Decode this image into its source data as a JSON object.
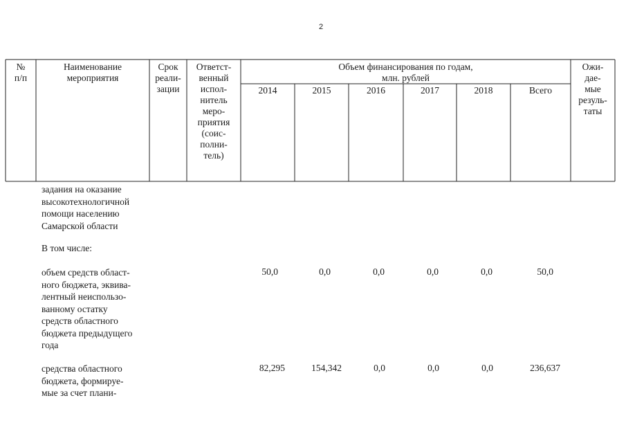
{
  "page_number": "2",
  "header": {
    "col_no": "№\nп/п",
    "col_name": "Наименование\nмероприятия",
    "col_term": "Срок\nреали-\nзации",
    "col_resp": "Ответст-\nвенный\nиспол-\nнитель\nмеро-\nприятия\n(соис-\nполни-\nтель)",
    "col_fin": "Объем финансирования по годам,\nмлн. рублей",
    "years": [
      "2014",
      "2015",
      "2016",
      "2017",
      "2018",
      "Всего"
    ],
    "col_expected": "Ожи-\nдае-\nмые\nрезуль-\nтаты"
  },
  "body": {
    "intro_text": "задания на оказание\nвысокотехнологичной\nпомощи населению\nСамарской области",
    "subheading": "В том числе:",
    "rows": [
      {
        "text": "объем средств област-\nного бюджета, эквива-\nлентный неиспользо-\nванному остатку\nсредств областного\nбюджета предыдущего\nгода",
        "values": [
          "50,0",
          "0,0",
          "0,0",
          "0,0",
          "0,0",
          "50,0"
        ]
      },
      {
        "text": "средства областного\nбюджета, формируе-\nмые за счет плани-",
        "values": [
          "82,295",
          "154,342",
          "0,0",
          "0,0",
          "0,0",
          "236,637"
        ]
      }
    ]
  }
}
